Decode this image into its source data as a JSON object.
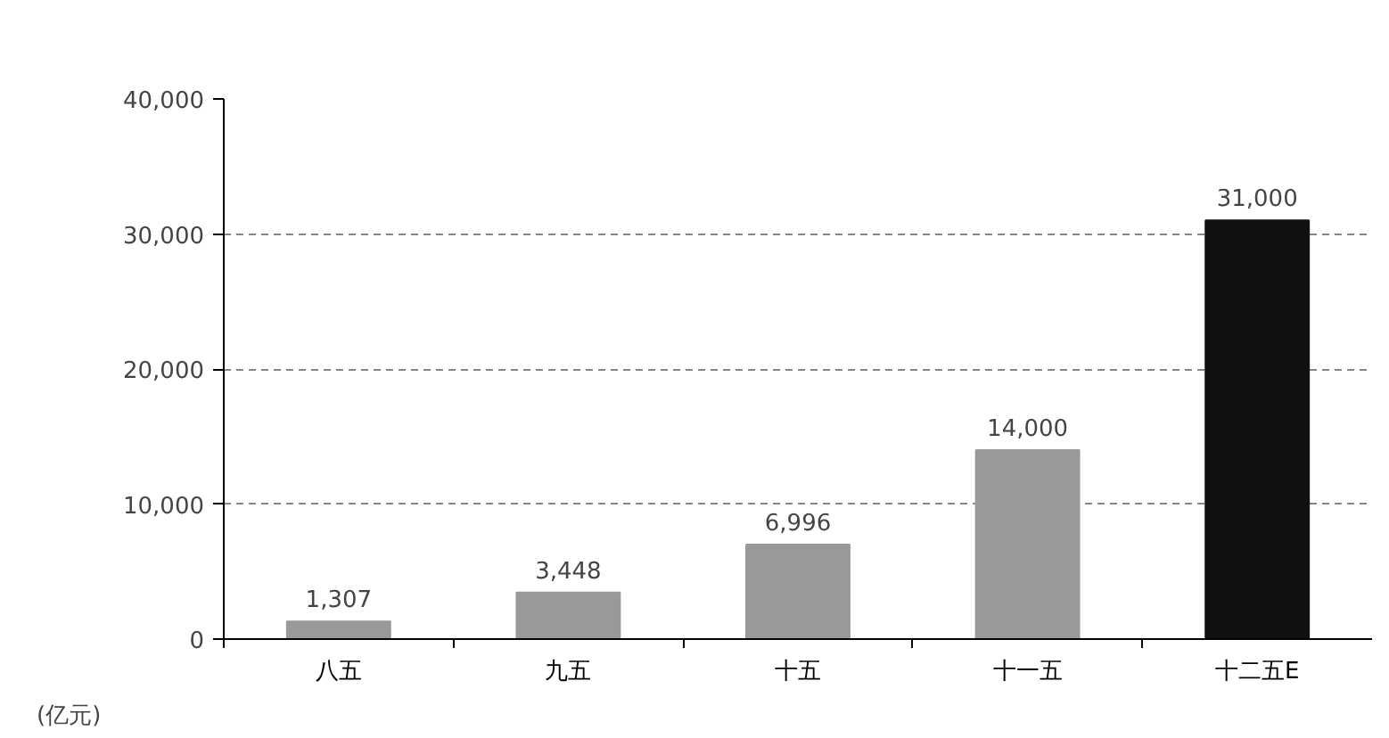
{
  "chart_data": {
    "type": "bar",
    "ylabel": "(亿元)",
    "categories": [
      "八五",
      "九五",
      "十五",
      "十一五",
      "十二五E"
    ],
    "values": [
      1307,
      3448,
      6996,
      14000,
      31000
    ],
    "value_labels": [
      "1,307",
      "3,448",
      "6,996",
      "14,000",
      "31,000"
    ],
    "colors": [
      "#999999",
      "#999999",
      "#999999",
      "#999999",
      "#111111"
    ],
    "ylim": [
      0,
      40000
    ],
    "yticks": [
      {
        "value": 0,
        "label": "0"
      },
      {
        "value": 10000,
        "label": "10,000"
      },
      {
        "value": 20000,
        "label": "20,000"
      },
      {
        "value": 30000,
        "label": "30,000"
      },
      {
        "value": 40000,
        "label": "40,000"
      }
    ],
    "grid": "y"
  }
}
